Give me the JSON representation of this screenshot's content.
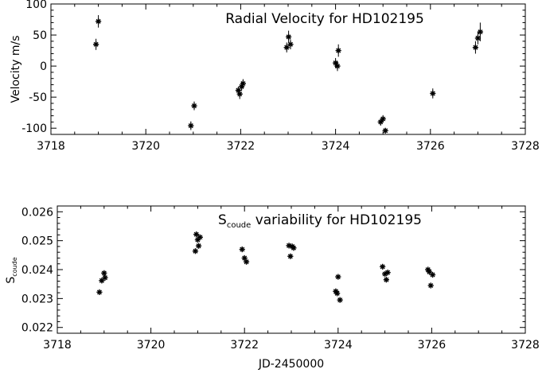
{
  "chart_data": [
    {
      "type": "scatter",
      "title": "Radial Velocity for HD102195",
      "ylabel": "Velocity m/s",
      "xlabel": "",
      "xlim": [
        3718,
        3728
      ],
      "ylim": [
        -110,
        100
      ],
      "xticks": [
        3718,
        3720,
        3722,
        3724,
        3726,
        3728
      ],
      "yticks": [
        -100,
        -50,
        0,
        50,
        100
      ],
      "grid": false,
      "marker": "asterisk",
      "error_bars": true,
      "series": [
        {
          "points": [
            {
              "x": 3718.95,
              "y": 35,
              "err": 9
            },
            {
              "x": 3719.0,
              "y": 72,
              "err": 10
            },
            {
              "x": 3720.95,
              "y": -96,
              "err": 7
            },
            {
              "x": 3721.02,
              "y": -64,
              "err": 7
            },
            {
              "x": 3721.95,
              "y": -39,
              "err": 6
            },
            {
              "x": 3721.98,
              "y": -45,
              "err": 8
            },
            {
              "x": 3722.02,
              "y": -33,
              "err": 7
            },
            {
              "x": 3722.05,
              "y": -28,
              "err": 7
            },
            {
              "x": 3722.97,
              "y": 30,
              "err": 8
            },
            {
              "x": 3723.01,
              "y": 47,
              "err": 10
            },
            {
              "x": 3723.05,
              "y": 35,
              "err": 8
            },
            {
              "x": 3724.0,
              "y": 5,
              "err": 8
            },
            {
              "x": 3724.04,
              "y": 0,
              "err": 8
            },
            {
              "x": 3724.06,
              "y": 25,
              "err": 10
            },
            {
              "x": 3724.95,
              "y": -90,
              "err": 6
            },
            {
              "x": 3725.0,
              "y": -85,
              "err": 6
            },
            {
              "x": 3725.05,
              "y": -104,
              "err": 4
            },
            {
              "x": 3726.05,
              "y": -44,
              "err": 8
            },
            {
              "x": 3726.95,
              "y": 30,
              "err": 10
            },
            {
              "x": 3727.0,
              "y": 45,
              "err": 10
            },
            {
              "x": 3727.05,
              "y": 55,
              "err": 15
            }
          ]
        }
      ]
    },
    {
      "type": "scatter",
      "title_main": "S",
      "title_sub": "coude",
      "title_rest": " variability for HD102195",
      "ylabel_main": "S",
      "ylabel_sub": "coude",
      "xlabel": "JD-2450000",
      "xlim": [
        3718,
        3728
      ],
      "ylim": [
        0.0218,
        0.0262
      ],
      "xticks": [
        3718,
        3720,
        3722,
        3724,
        3726,
        3728
      ],
      "yticks": [
        0.022,
        0.023,
        0.024,
        0.025,
        0.026
      ],
      "grid": false,
      "marker": "asterisk",
      "series": [
        {
          "points": [
            {
              "x": 3718.9,
              "y": 0.02322
            },
            {
              "x": 3718.95,
              "y": 0.02362
            },
            {
              "x": 3719.0,
              "y": 0.02388
            },
            {
              "x": 3719.02,
              "y": 0.02372
            },
            {
              "x": 3720.95,
              "y": 0.02464
            },
            {
              "x": 3720.97,
              "y": 0.02522
            },
            {
              "x": 3721.0,
              "y": 0.02503
            },
            {
              "x": 3721.02,
              "y": 0.02482
            },
            {
              "x": 3721.05,
              "y": 0.02512
            },
            {
              "x": 3721.95,
              "y": 0.0247
            },
            {
              "x": 3722.0,
              "y": 0.0244
            },
            {
              "x": 3722.04,
              "y": 0.02427
            },
            {
              "x": 3722.95,
              "y": 0.02483
            },
            {
              "x": 3722.98,
              "y": 0.02446
            },
            {
              "x": 3723.02,
              "y": 0.0248
            },
            {
              "x": 3723.05,
              "y": 0.02475
            },
            {
              "x": 3723.95,
              "y": 0.02325
            },
            {
              "x": 3723.98,
              "y": 0.02318
            },
            {
              "x": 3724.0,
              "y": 0.02375
            },
            {
              "x": 3724.04,
              "y": 0.02295
            },
            {
              "x": 3724.95,
              "y": 0.0241
            },
            {
              "x": 3725.0,
              "y": 0.02385
            },
            {
              "x": 3725.03,
              "y": 0.02365
            },
            {
              "x": 3725.06,
              "y": 0.0239
            },
            {
              "x": 3725.92,
              "y": 0.024
            },
            {
              "x": 3725.95,
              "y": 0.02392
            },
            {
              "x": 3725.98,
              "y": 0.02345
            },
            {
              "x": 3726.02,
              "y": 0.02382
            }
          ]
        }
      ]
    }
  ]
}
